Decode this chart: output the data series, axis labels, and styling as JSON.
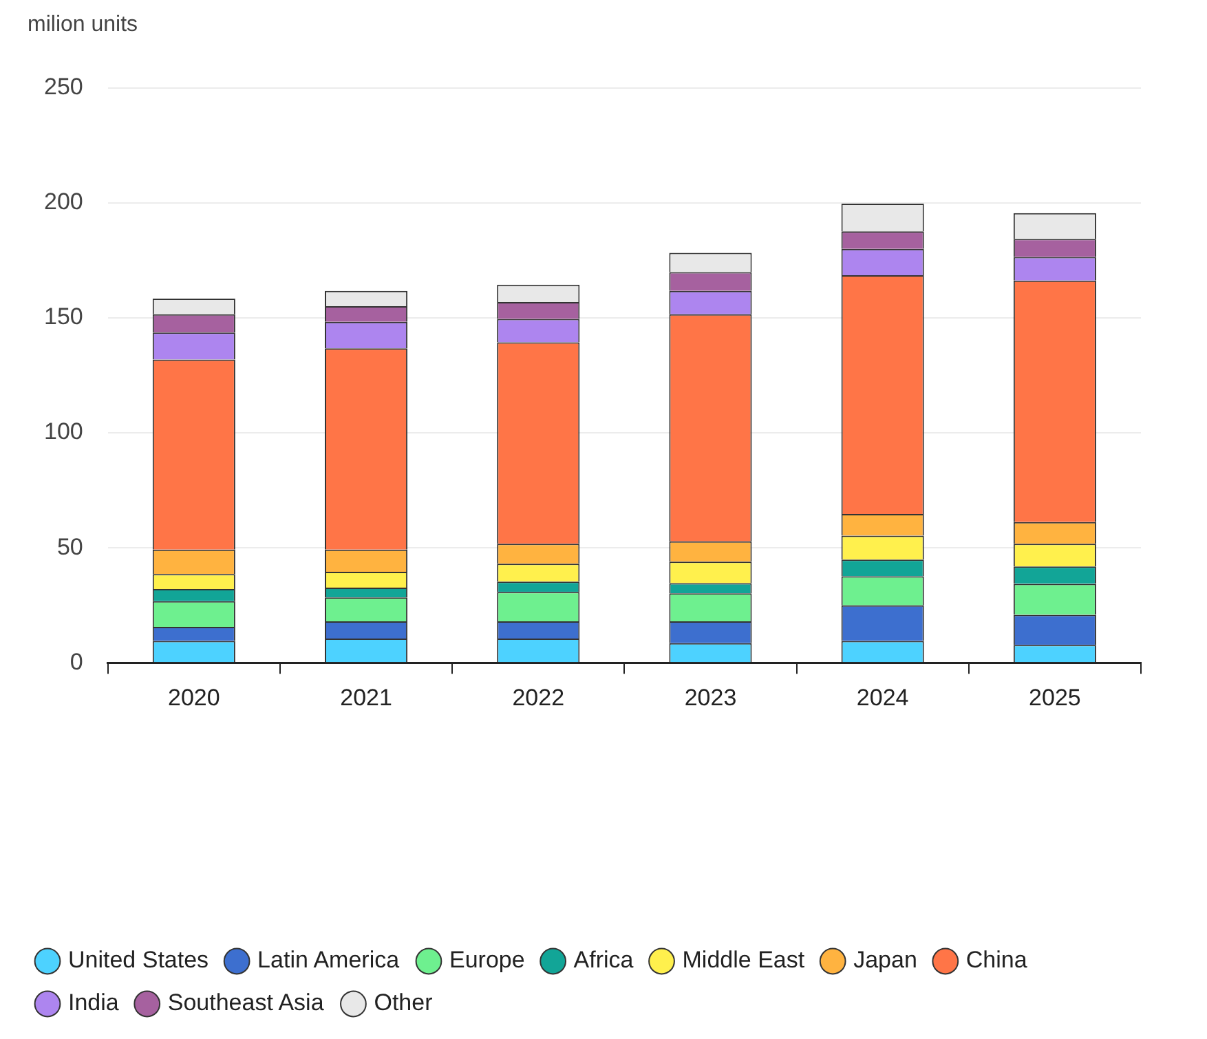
{
  "chart_data": {
    "type": "bar",
    "ylabel": "milion units",
    "categories": [
      "2020",
      "2021",
      "2022",
      "2023",
      "2024",
      "2025"
    ],
    "stacked": true,
    "ylim": [
      0,
      250
    ],
    "yticks": [
      0,
      50,
      100,
      150,
      200,
      250
    ],
    "grid": "y",
    "legend": "bottom left",
    "series": [
      {
        "name": "United States",
        "color": "#4dd2ff",
        "values": [
          9.5,
          10.5,
          10.5,
          8.5,
          9.5,
          7.8
        ]
      },
      {
        "name": "Latin America",
        "color": "#3d6fcf",
        "values": [
          6.1,
          7.5,
          7.5,
          9.5,
          15.5,
          13.1
        ]
      },
      {
        "name": "Europe",
        "color": "#6ef08f",
        "values": [
          11.2,
          10.4,
          12.8,
          12.2,
          12.6,
          13.4
        ]
      },
      {
        "name": "Africa",
        "color": "#12a597",
        "values": [
          5.3,
          4.3,
          4.5,
          4.4,
          7.3,
          7.6
        ]
      },
      {
        "name": "Middle East",
        "color": "#fff04d",
        "values": [
          6.5,
          6.9,
          7.8,
          9.4,
          10.4,
          9.9
        ]
      },
      {
        "name": "Japan",
        "color": "#ffb340",
        "values": [
          10.6,
          9.6,
          8.7,
          8.8,
          9.4,
          9.4
        ]
      },
      {
        "name": "China",
        "color": "#ff7547",
        "values": [
          82.7,
          87.6,
          87.6,
          98.8,
          103.9,
          105.1
        ]
      },
      {
        "name": "India",
        "color": "#ad85ef",
        "values": [
          11.8,
          11.5,
          10.2,
          10.2,
          11.4,
          10.2
        ]
      },
      {
        "name": "Southeast Asia",
        "color": "#a6619f",
        "values": [
          7.9,
          6.8,
          7.3,
          8.1,
          7.7,
          7.9
        ]
      },
      {
        "name": "Other",
        "color": "#e8e8e8",
        "values": [
          6.8,
          6.7,
          7.6,
          8.4,
          12.0,
          11.2
        ]
      }
    ]
  }
}
